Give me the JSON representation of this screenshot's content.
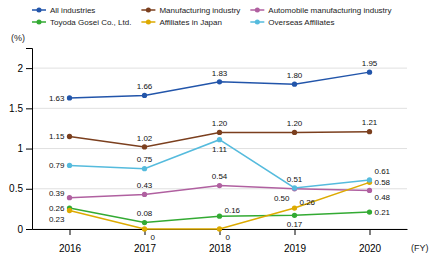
{
  "chart_data": {
    "type": "line",
    "x_label": "(FY)",
    "y_label": "(%)",
    "categories": [
      "2016",
      "2017",
      "2018",
      "2019",
      "2020"
    ],
    "series": [
      {
        "name": "All industries",
        "color": "#2255aa",
        "marker": "o",
        "values": [
          1.63,
          1.66,
          1.83,
          1.8,
          1.95
        ],
        "value_labels": [
          "1.63",
          "1.66",
          "1.83",
          "1.80",
          "1.95"
        ]
      },
      {
        "name": "Manufacturing industry",
        "color": "#7b3f1e",
        "marker": "o",
        "values": [
          1.15,
          1.02,
          1.2,
          1.2,
          1.21
        ],
        "value_labels": [
          "1.15",
          "1.02",
          "1.20",
          "1.20",
          "1.21"
        ]
      },
      {
        "name": "Automobile manufacturing industry",
        "color": "#b060a0",
        "marker": "o",
        "values": [
          0.39,
          0.43,
          0.54,
          0.5,
          0.48
        ],
        "value_labels": [
          "0.39",
          "0.43",
          "0.54",
          "0.50",
          "0.48"
        ]
      },
      {
        "name": "Toyoda Gosei Co., Ltd.",
        "color": "#33aa33",
        "marker": "o",
        "values": [
          0.26,
          0.08,
          0.16,
          0.17,
          0.21
        ],
        "value_labels": [
          "0.26",
          "0.08",
          "0.16",
          "0.17",
          "0.21"
        ]
      },
      {
        "name": "Affiliates in Japan",
        "color": "#ddaa00",
        "marker": "o",
        "values": [
          0.23,
          0,
          0,
          0.26,
          0.58
        ],
        "value_labels": [
          "0.23",
          "0",
          "0",
          "0.26",
          "0.58"
        ]
      },
      {
        "name": "Overseas Affiliates",
        "color": "#55bbdd",
        "marker": "o",
        "values": [
          0.79,
          0.75,
          1.11,
          0.51,
          0.61
        ],
        "value_labels": [
          "0.79",
          "0.75",
          "1.11",
          "0.51",
          "0.61"
        ]
      }
    ],
    "data_labels": true,
    "ylim": [
      0,
      2.25
    ],
    "yticks": [
      0,
      0.5,
      1,
      1.5,
      2
    ],
    "grid": true,
    "legend": "top"
  }
}
